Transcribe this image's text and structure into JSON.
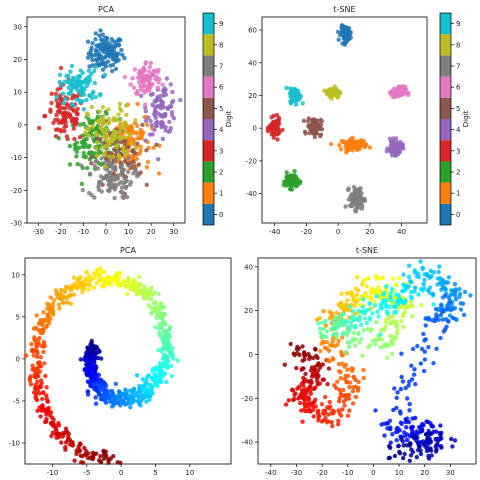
{
  "chart_data": [
    {
      "type": "scatter",
      "title": "PCA",
      "xlim": [
        -35,
        35
      ],
      "ylim": [
        -30,
        33
      ],
      "xticks": [
        -30,
        -20,
        -10,
        0,
        10,
        20,
        30
      ],
      "yticks": [
        -30,
        -20,
        -10,
        0,
        10,
        20,
        30
      ],
      "colorbar": {
        "label": "Digit",
        "ticks": [
          0,
          1,
          2,
          3,
          4,
          5,
          6,
          7,
          8,
          9
        ],
        "colormap": "tab10"
      },
      "clusters": [
        {
          "digit": 0,
          "center": [
            0,
            22
          ],
          "spread": [
            7,
            5
          ],
          "n": 120
        },
        {
          "digit": 1,
          "center": [
            10,
            -5
          ],
          "spread": [
            9,
            9
          ],
          "n": 110
        },
        {
          "digit": 2,
          "center": [
            -5,
            -5
          ],
          "spread": [
            10,
            7
          ],
          "n": 110
        },
        {
          "digit": 3,
          "center": [
            -18,
            3
          ],
          "spread": [
            8,
            8
          ],
          "n": 100
        },
        {
          "digit": 4,
          "center": [
            25,
            5
          ],
          "spread": [
            6,
            7
          ],
          "n": 90
        },
        {
          "digit": 5,
          "center": [
            5,
            -10
          ],
          "spread": [
            10,
            9
          ],
          "n": 90
        },
        {
          "digit": 6,
          "center": [
            18,
            14
          ],
          "spread": [
            6,
            5
          ],
          "n": 80
        },
        {
          "digit": 7,
          "center": [
            2,
            -16
          ],
          "spread": [
            9,
            6
          ],
          "n": 90
        },
        {
          "digit": 8,
          "center": [
            2,
            -3
          ],
          "spread": [
            9,
            8
          ],
          "n": 100
        },
        {
          "digit": 9,
          "center": [
            -12,
            12
          ],
          "spread": [
            8,
            5
          ],
          "n": 90
        }
      ]
    },
    {
      "type": "scatter",
      "title": "t-SNE",
      "xlim": [
        -48,
        56
      ],
      "ylim": [
        -58,
        68
      ],
      "xticks": [
        -40,
        -20,
        0,
        20,
        40
      ],
      "yticks": [
        -40,
        -20,
        0,
        20,
        40,
        60
      ],
      "colorbar": {
        "label": "Digit",
        "ticks": [
          0,
          1,
          2,
          3,
          4,
          5,
          6,
          7,
          8,
          9
        ],
        "colormap": "tab10"
      },
      "clusters": [
        {
          "digit": 0,
          "center": [
            5,
            58
          ],
          "spread": [
            3,
            4
          ],
          "n": 90
        },
        {
          "digit": 1,
          "center": [
            10,
            -10
          ],
          "spread": [
            7,
            3
          ],
          "n": 90
        },
        {
          "digit": 2,
          "center": [
            -30,
            -32
          ],
          "spread": [
            4,
            4
          ],
          "n": 90
        },
        {
          "digit": 3,
          "center": [
            -40,
            0
          ],
          "spread": [
            3,
            5
          ],
          "n": 80
        },
        {
          "digit": 4,
          "center": [
            36,
            -12
          ],
          "spread": [
            4,
            4
          ],
          "n": 80
        },
        {
          "digit": 5,
          "center": [
            -15,
            1
          ],
          "spread": [
            4,
            5
          ],
          "n": 80
        },
        {
          "digit": 6,
          "center": [
            38,
            22
          ],
          "spread": [
            4,
            3
          ],
          "n": 80
        },
        {
          "digit": 7,
          "center": [
            12,
            -43
          ],
          "spread": [
            4,
            6
          ],
          "n": 90
        },
        {
          "digit": 8,
          "center": [
            -3,
            22
          ],
          "spread": [
            4,
            3
          ],
          "n": 80
        },
        {
          "digit": 9,
          "center": [
            -27,
            20
          ],
          "spread": [
            3,
            4
          ],
          "n": 80
        }
      ]
    },
    {
      "type": "scatter",
      "title": "PCA",
      "xlim": [
        -14,
        16
      ],
      "ylim": [
        -12.5,
        12
      ],
      "xticks": [
        -10,
        -5,
        0,
        5,
        10
      ],
      "yticks": [
        -10,
        -5,
        0,
        5,
        10
      ],
      "colormap": "jet",
      "spiral": {
        "center": [
          -1,
          0.5
        ],
        "turns": 1.3,
        "radius_start": 3.0,
        "radius_end": 13.5,
        "n": 900
      }
    },
    {
      "type": "scatter",
      "title": "t-SNE",
      "xlim": [
        -45,
        40
      ],
      "ylim": [
        -50,
        44
      ],
      "xticks": [
        -40,
        -30,
        -20,
        -10,
        0,
        10,
        20,
        30
      ],
      "yticks": [
        -40,
        -20,
        0,
        20,
        40
      ],
      "colormap": "jet",
      "path": [
        [
          -28,
          2
        ],
        [
          -22,
          -10
        ],
        [
          -28,
          -20
        ],
        [
          -18,
          -30
        ],
        [
          -8,
          -15
        ],
        [
          -18,
          10
        ],
        [
          -10,
          25
        ],
        [
          0,
          30
        ],
        [
          12,
          24
        ],
        [
          5,
          5
        ],
        [
          -18,
          10
        ],
        [
          -5,
          18
        ],
        [
          10,
          25
        ],
        [
          22,
          37
        ],
        [
          32,
          25
        ],
        [
          25,
          15
        ],
        [
          5,
          -35
        ],
        [
          20,
          -35
        ],
        [
          25,
          -42
        ],
        [
          8,
          -45
        ]
      ],
      "n": 900
    }
  ]
}
